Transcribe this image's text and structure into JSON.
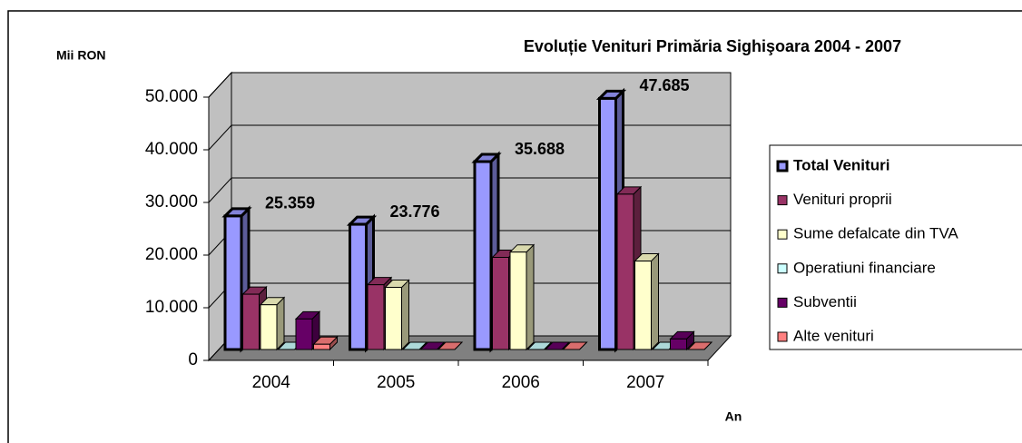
{
  "chart_data": {
    "type": "bar3d",
    "title": "Evoluție Venituri Primăria Sighişoara 2004 - 2007",
    "ylabel": "Mii RON",
    "xlabel": "An",
    "categories": [
      "2004",
      "2005",
      "2006",
      "2007"
    ],
    "series": [
      {
        "name": "Total Venituri",
        "color": "#9999ff",
        "values": [
          25359,
          23776,
          35688,
          47685
        ],
        "value_labels": [
          "25.359",
          "23.776",
          "35.688",
          "47.685"
        ]
      },
      {
        "name": "Venituri proprii",
        "color": "#993366",
        "values": [
          10500,
          12300,
          17500,
          29500
        ]
      },
      {
        "name": "Sume defalcate din TVA",
        "color": "#ffffcc",
        "values": [
          8500,
          11800,
          18500,
          16800
        ]
      },
      {
        "name": "Operatiuni financiare",
        "color": "#ccffff",
        "values": [
          0,
          0,
          0,
          0
        ]
      },
      {
        "name": "Subventii",
        "color": "#660066",
        "values": [
          5800,
          0,
          0,
          2000
        ]
      },
      {
        "name": "Alte venituri",
        "color": "#ff8080",
        "values": [
          1000,
          0,
          0,
          0
        ]
      }
    ],
    "ylim": [
      0,
      50000
    ],
    "yticks": [
      0,
      {
        "value": 10000,
        "label": "10.000"
      },
      {
        "value": 20000,
        "label": "20.000"
      },
      {
        "value": 30000,
        "label": "30.000"
      },
      {
        "value": 40000,
        "label": "40.000"
      },
      {
        "value": 50000,
        "label": "50.000"
      }
    ],
    "grid": true
  }
}
